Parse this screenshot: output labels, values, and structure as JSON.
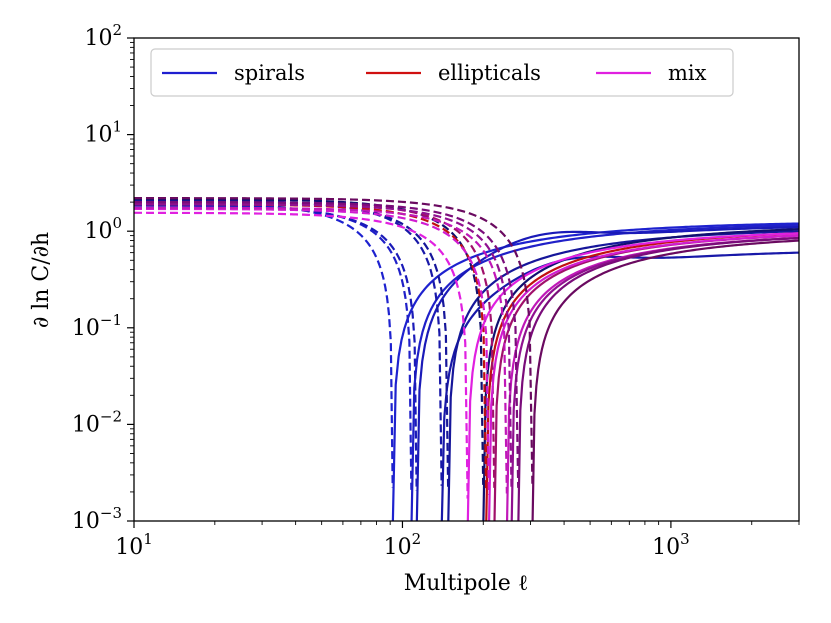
{
  "chart_data": {
    "type": "line",
    "title": "",
    "xlabel": "Multipole ℓ",
    "ylabel": "∂ ln C/∂h",
    "xscale": "log",
    "yscale": "log",
    "xlim": [
      10,
      3000
    ],
    "ylim": [
      0.001,
      100
    ],
    "x_ticks": [
      {
        "value": 10,
        "base": "10",
        "exp": "1"
      },
      {
        "value": 100,
        "base": "10",
        "exp": "2"
      },
      {
        "value": 1000,
        "base": "10",
        "exp": "3"
      }
    ],
    "y_ticks": [
      {
        "value": 0.001,
        "base": "10",
        "exp": "−3"
      },
      {
        "value": 0.01,
        "base": "10",
        "exp": "−2"
      },
      {
        "value": 0.1,
        "base": "10",
        "exp": "−1"
      },
      {
        "value": 1,
        "base": "10",
        "exp": "0"
      },
      {
        "value": 10,
        "base": "10",
        "exp": "1"
      },
      {
        "value": 100,
        "base": "10",
        "exp": "2"
      }
    ],
    "grid": false,
    "legend": {
      "placement": "top",
      "columns": 3,
      "entries": [
        {
          "label": "spirals",
          "color": "#1f1fd0"
        },
        {
          "label": "ellipticals",
          "color": "#d01010"
        },
        {
          "label": "mix",
          "color": "#e020e0"
        }
      ]
    },
    "series": [
      {
        "group": "spirals",
        "color": "#1e22cf",
        "zero_crossing_ell": 92,
        "y_at_10": 2.0,
        "y_at_3000": 1.2
      },
      {
        "group": "spirals",
        "color": "#2020c8",
        "zero_crossing_ell": 108,
        "y_at_10": 1.9,
        "y_at_3000": 1.15
      },
      {
        "group": "spirals",
        "color": "#1a1ab8",
        "zero_crossing_ell": 113,
        "y_at_10": 1.85,
        "y_at_3000": 1.1,
        "bump": true
      },
      {
        "group": "spirals",
        "color": "#1818a8",
        "zero_crossing_ell": 140,
        "y_at_10": 2.1,
        "y_at_3000": 0.6,
        "bump": true
      },
      {
        "group": "spirals",
        "color": "#16169a",
        "zero_crossing_ell": 148,
        "y_at_10": 2.05,
        "y_at_3000": 1.0
      },
      {
        "group": "spirals",
        "color": "#101070",
        "zero_crossing_ell": 200,
        "y_at_10": 2.15,
        "y_at_3000": 1.05
      },
      {
        "group": "ellipticals",
        "color": "#c01010",
        "zero_crossing_ell": 205,
        "y_at_10": 1.9,
        "y_at_3000": 0.95
      },
      {
        "group": "ellipticals",
        "color": "#a0106a",
        "zero_crossing_ell": 220,
        "y_at_10": 2.0,
        "y_at_3000": 0.9
      },
      {
        "group": "mix",
        "color": "#e020e0",
        "zero_crossing_ell": 175,
        "y_at_10": 1.55,
        "y_at_3000": 0.95
      },
      {
        "group": "mix",
        "color": "#d01cd0",
        "zero_crossing_ell": 210,
        "y_at_10": 1.7,
        "y_at_3000": 0.9
      },
      {
        "group": "mix",
        "color": "#c018b8",
        "zero_crossing_ell": 245,
        "y_at_10": 1.75,
        "y_at_3000": 0.85
      },
      {
        "group": "mix",
        "color": "#901090",
        "zero_crossing_ell": 255,
        "y_at_10": 1.9,
        "y_at_3000": 0.85
      },
      {
        "group": "mix",
        "color": "#7a0c7a",
        "zero_crossing_ell": 270,
        "y_at_10": 2.0,
        "y_at_3000": 0.85
      },
      {
        "group": "mix",
        "color": "#6a0a60",
        "zero_crossing_ell": 305,
        "y_at_10": 2.2,
        "y_at_3000": 0.8
      }
    ]
  }
}
